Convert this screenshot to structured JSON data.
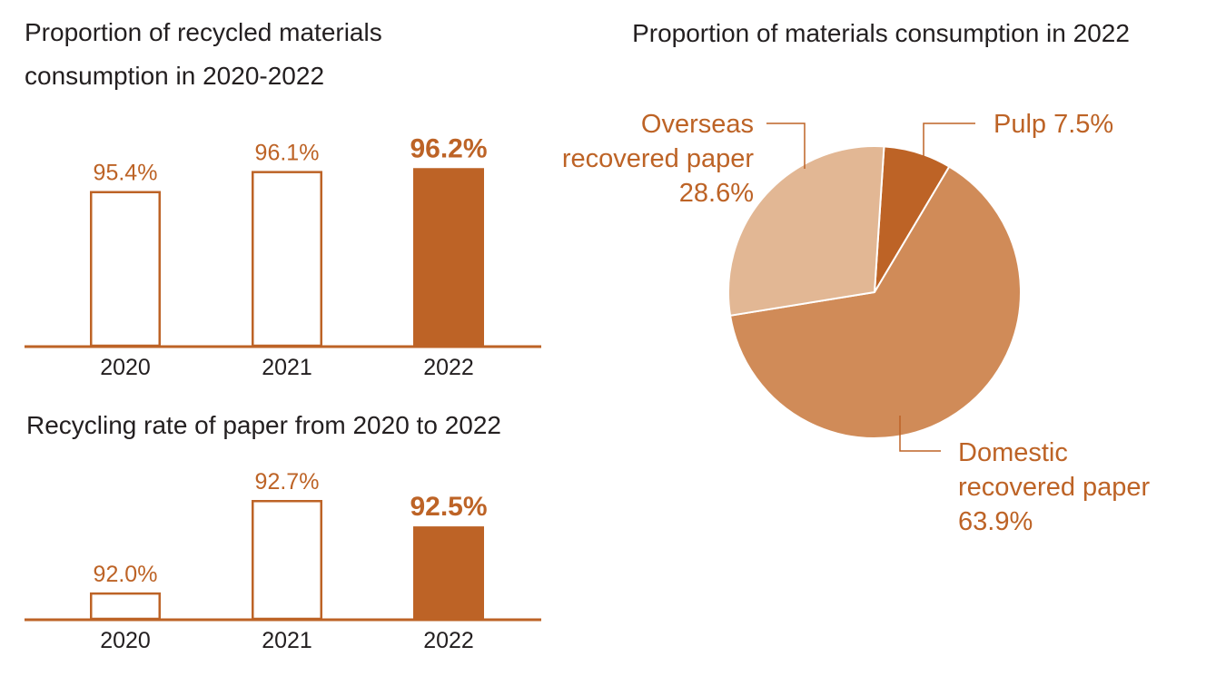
{
  "colors": {
    "accent": "#bd6326",
    "pie_overseas": "#e2b794",
    "pie_domestic": "#d08b58",
    "pie_pulp": "#bd6326",
    "text": "#231f20"
  },
  "chart_data": [
    {
      "type": "bar",
      "title_lines": [
        "Proportion of recycled materials",
        "consumption in 2020-2022"
      ],
      "categories": [
        "2020",
        "2021",
        "2022"
      ],
      "values": [
        95.4,
        96.1,
        96.2
      ],
      "value_labels": [
        "95.4%",
        "96.1%",
        "96.2%"
      ],
      "highlight": [
        false,
        false,
        true
      ],
      "ylim": [
        90,
        97
      ],
      "grid": false
    },
    {
      "type": "bar",
      "title": "Recycling rate of paper from 2020 to 2022",
      "categories": [
        "2020",
        "2021",
        "2022"
      ],
      "values": [
        92.0,
        92.7,
        92.5
      ],
      "value_labels": [
        "92.0%",
        "92.7%",
        "92.5%"
      ],
      "highlight": [
        false,
        false,
        true
      ],
      "ylim": [
        91.8,
        92.7
      ],
      "grid": false
    },
    {
      "type": "pie",
      "title": "Proportion of materials consumption in 2022",
      "slices": [
        {
          "label_lines": [
            "Pulp 7.5%"
          ],
          "value": 7.5
        },
        {
          "label_lines": [
            "Domestic",
            "recovered paper",
            "63.9%"
          ],
          "value": 63.9
        },
        {
          "label_lines": [
            "Overseas",
            "recovered paper",
            "28.6%"
          ],
          "value": 28.6
        }
      ]
    }
  ]
}
